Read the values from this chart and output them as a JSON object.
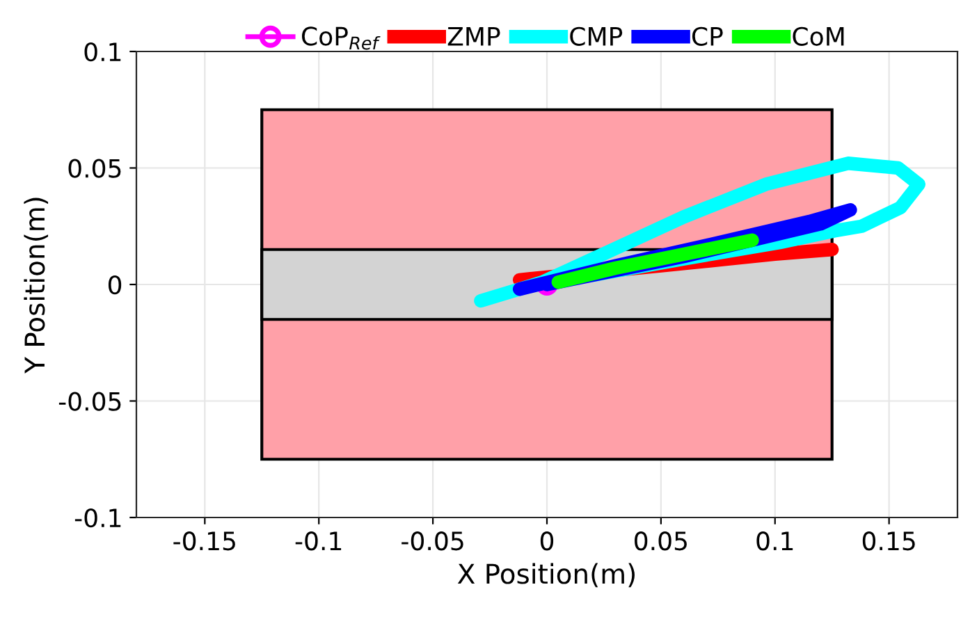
{
  "chart_data": {
    "type": "line",
    "xlabel": "X Position(m)",
    "ylabel": "Y Position(m)",
    "xlim": [
      -0.18,
      0.18
    ],
    "xticks": [
      -0.15,
      -0.1,
      -0.05,
      0,
      0.05,
      0.1,
      0.15
    ],
    "ylim": [
      -0.1,
      0.1
    ],
    "yticks": [
      -0.1,
      -0.05,
      0,
      0.05,
      0.1
    ],
    "grid": true,
    "legend": "top",
    "series": [
      {
        "type": "area",
        "x": [
          -0.125,
          0.125,
          0.125,
          -0.125
        ],
        "values": [
          0.075,
          0.075,
          -0.075,
          -0.075
        ],
        "color": "#ffa0a8"
      },
      {
        "type": "area",
        "x": [
          -0.125,
          0.125,
          0.125,
          -0.125
        ],
        "values": [
          0.015,
          0.015,
          -0.015,
          -0.015
        ],
        "color": "#d3d3d3"
      },
      {
        "name": "CoP$_{Ref}$",
        "marker": "circle",
        "x": [
          0
        ],
        "values": [
          0
        ],
        "color": "#ff00ff"
      },
      {
        "name": "ZMP",
        "x": [
          -0.012,
          0.05,
          0.08,
          0.1,
          0.125
        ],
        "values": [
          0.002,
          0.008,
          0.011,
          0.013,
          0.015
        ],
        "color": "#ff0000"
      },
      {
        "name": "CMP",
        "x": [
          -0.029,
          -0.002,
          0.029,
          0.06,
          0.096,
          0.132,
          0.154,
          0.163,
          0.155,
          0.138,
          0.126,
          0.102,
          0.06,
          0.02
        ],
        "values": [
          -0.007,
          0.001,
          0.015,
          0.029,
          0.043,
          0.052,
          0.05,
          0.043,
          0.033,
          0.025,
          0.023,
          0.018,
          0.011,
          0.004
        ],
        "color": "#00ffff"
      },
      {
        "name": "CP",
        "x": [
          -0.012,
          0.03,
          0.08,
          0.115,
          0.133,
          0.12,
          0.06,
          0.0
        ],
        "values": [
          -0.002,
          0.008,
          0.019,
          0.027,
          0.032,
          0.026,
          0.012,
          0.0
        ],
        "color": "#0000ff"
      },
      {
        "name": "CoM",
        "x": [
          0.005,
          0.03,
          0.06,
          0.09
        ],
        "values": [
          0.001,
          0.007,
          0.013,
          0.019
        ],
        "color": "#00ff00"
      }
    ]
  }
}
